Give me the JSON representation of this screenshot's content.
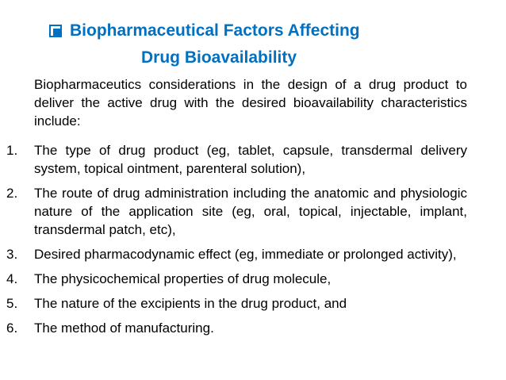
{
  "title": {
    "line1": "Biopharmaceutical Factors Affecting",
    "line2": "Drug Bioavailability"
  },
  "colors": {
    "accent": "#0070c0"
  },
  "intro": "Biopharmaceutics considerations in the design of a drug product to deliver the active drug with the desired bioavailability characteristics include:",
  "items": [
    {
      "num": "1.",
      "text": "The type of drug product (eg, tablet, capsule, transdermal delivery system, topical ointment, parenteral solution),"
    },
    {
      "num": "2.",
      "text": "The route of drug administration including the anatomic and physiologic nature of the application site (eg, oral, topical, injectable, implant, transdermal patch, etc),"
    },
    {
      "num": "3.",
      "text": "Desired pharmacodynamic effect (eg, immediate or prolonged activity),"
    },
    {
      "num": "4.",
      "text": "The physicochemical properties of drug molecule,"
    },
    {
      "num": "5.",
      "text": "The nature of the excipients in the drug product, and"
    },
    {
      "num": "6.",
      "text": "The method of manufacturing."
    }
  ]
}
